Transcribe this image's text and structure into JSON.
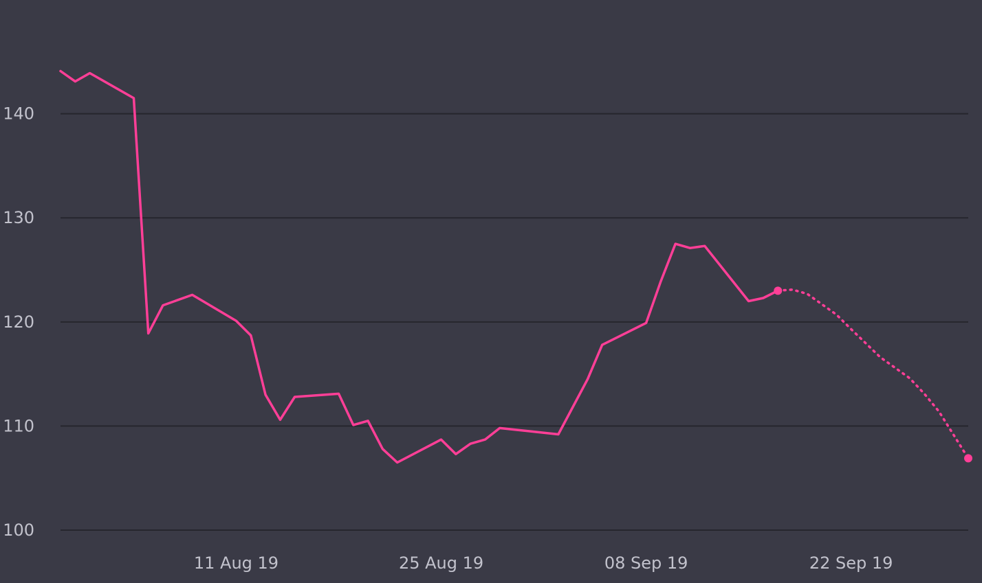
{
  "chart_data": {
    "type": "line",
    "title": "",
    "xlabel": "",
    "ylabel": "",
    "ylim": [
      100,
      144
    ],
    "xlim": [
      "2019-07-30",
      "2019-09-30"
    ],
    "y_ticks": [
      100,
      110,
      120,
      130,
      140
    ],
    "y_tick_labels": [
      "100",
      "110",
      "120",
      "130",
      "140"
    ],
    "x_ticks": [
      "2019-08-11",
      "2019-08-25",
      "2019-09-08",
      "2019-09-22"
    ],
    "x_tick_labels": [
      "11 Aug 19",
      "25 Aug 19",
      "08 Sep 19",
      "22 Sep 19"
    ],
    "grid": true,
    "legend": "none",
    "colors": {
      "background": "#3a3a46",
      "grid": "#26262e",
      "series": "#ff3f97",
      "tick_text": "#c2c2cc"
    },
    "series": [
      {
        "style": "solid",
        "x": [
          "2019-07-30",
          "2019-07-31",
          "2019-08-01",
          "2019-08-04",
          "2019-08-05",
          "2019-08-06",
          "2019-08-08",
          "2019-08-11",
          "2019-08-12",
          "2019-08-13",
          "2019-08-14",
          "2019-08-15",
          "2019-08-18",
          "2019-08-19",
          "2019-08-20",
          "2019-08-21",
          "2019-08-22",
          "2019-08-25",
          "2019-08-26",
          "2019-08-27",
          "2019-08-28",
          "2019-08-29",
          "2019-09-02",
          "2019-09-04",
          "2019-09-05",
          "2019-09-08",
          "2019-09-09",
          "2019-09-10",
          "2019-09-11",
          "2019-09-12",
          "2019-09-15",
          "2019-09-16",
          "2019-09-17"
        ],
        "y": [
          144.1,
          143.1,
          143.9,
          141.5,
          118.9,
          121.6,
          122.6,
          120.1,
          118.7,
          113.0,
          110.6,
          112.8,
          113.1,
          110.1,
          110.5,
          107.8,
          106.5,
          108.7,
          107.3,
          108.3,
          108.7,
          109.8,
          109.2,
          114.5,
          117.8,
          119.9,
          123.9,
          127.5,
          127.1,
          127.3,
          122.0,
          122.3,
          123.0
        ]
      },
      {
        "style": "dotted",
        "x": [
          "2019-09-17",
          "2019-09-18",
          "2019-09-19",
          "2019-09-21",
          "2019-09-22",
          "2019-09-24",
          "2019-09-26",
          "2019-09-27",
          "2019-09-28",
          "2019-09-30"
        ],
        "y": [
          123.0,
          123.1,
          122.7,
          120.7,
          119.3,
          116.6,
          114.6,
          113.1,
          111.4,
          106.9
        ]
      }
    ]
  }
}
